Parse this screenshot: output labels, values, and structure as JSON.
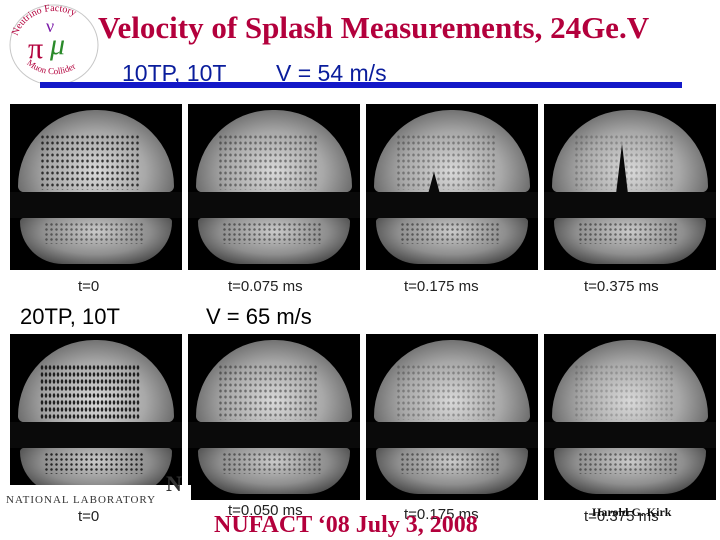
{
  "title": "Velocity of Splash Measurements, 24Ge.V",
  "logo": {
    "top_text": "Neutrino Factory",
    "bottom_text": "Muon Collider"
  },
  "row1": {
    "label": "10TP, 10T",
    "velocity": "V = 54 m/s"
  },
  "row2": {
    "label": "20TP, 10T",
    "velocity": "V = 65 m/s"
  },
  "row1_times": [
    "t=0",
    "t=0.075 ms",
    "t=0.175 ms",
    "t=0.375 ms"
  ],
  "row2_times": [
    "t=0",
    "t=0.050 ms",
    "t=0.175 ms",
    "t=0.375 ms"
  ],
  "lab": {
    "text": "NATIONAL LABORATORY",
    "partial": "N"
  },
  "footer": {
    "conference": "NUFACT ‘08 July 3, 2008",
    "author": "Harold G. Kirk"
  },
  "colors": {
    "title": "#b3003c",
    "subheading": "#0a1d9c",
    "rule": "#1419c8"
  }
}
